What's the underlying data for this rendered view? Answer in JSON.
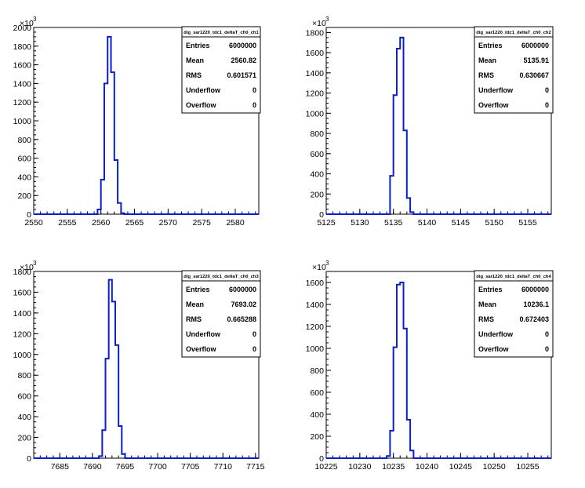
{
  "chart_data": [
    {
      "type": "bar",
      "title": "",
      "xlabel": "",
      "ylabel": "",
      "y_exponent_label": "×10",
      "y_exponent": "3",
      "xlim": [
        2550,
        2583.5
      ],
      "ylim": [
        0,
        2000
      ],
      "x_ticks": [
        2550,
        2555,
        2560,
        2565,
        2570,
        2575,
        2580
      ],
      "y_ticks": [
        0,
        200,
        400,
        600,
        800,
        1000,
        1200,
        1400,
        1600,
        1800,
        2000
      ],
      "bin_width": 0.5,
      "bins": [
        [
          2558.5,
          0
        ],
        [
          2559.0,
          0
        ],
        [
          2559.5,
          50
        ],
        [
          2560.0,
          370
        ],
        [
          2560.5,
          1400
        ],
        [
          2561.0,
          1900
        ],
        [
          2561.5,
          1520
        ],
        [
          2562.0,
          580
        ],
        [
          2562.5,
          120
        ],
        [
          2563.0,
          10
        ],
        [
          2563.5,
          0
        ]
      ],
      "grid": false,
      "stats": {
        "name": "dig_sar1220_tdc1_deltaT_ch0_ch1",
        "rows": [
          {
            "label": "Entries",
            "value": "6000000"
          },
          {
            "label": "Mean",
            "value": "2560.82"
          },
          {
            "label": "RMS",
            "value": "0.601571"
          },
          {
            "label": "Underflow",
            "value": "0"
          },
          {
            "label": "Overflow",
            "value": "0"
          }
        ]
      }
    },
    {
      "type": "bar",
      "title": "",
      "xlabel": "",
      "ylabel": "",
      "y_exponent_label": "×10",
      "y_exponent": "3",
      "xlim": [
        5125,
        5158.5
      ],
      "ylim": [
        0,
        1850
      ],
      "x_ticks": [
        5125,
        5130,
        5135,
        5140,
        5145,
        5150,
        5155
      ],
      "y_ticks": [
        0,
        200,
        400,
        600,
        800,
        1000,
        1200,
        1400,
        1600,
        1800
      ],
      "bin_width": 0.5,
      "bins": [
        [
          5133.5,
          0
        ],
        [
          5134.0,
          0
        ],
        [
          5134.5,
          380
        ],
        [
          5135.0,
          1180
        ],
        [
          5135.5,
          1640
        ],
        [
          5136.0,
          1750
        ],
        [
          5136.5,
          830
        ],
        [
          5137.0,
          160
        ],
        [
          5137.5,
          20
        ],
        [
          5138.0,
          0
        ]
      ],
      "grid": false,
      "stats": {
        "name": "dig_sar1220_tdc1_deltaT_ch0_ch2",
        "rows": [
          {
            "label": "Entries",
            "value": "6000000"
          },
          {
            "label": "Mean",
            "value": "5135.91"
          },
          {
            "label": "RMS",
            "value": "0.630667"
          },
          {
            "label": "Underflow",
            "value": "0"
          },
          {
            "label": "Overflow",
            "value": "0"
          }
        ]
      }
    },
    {
      "type": "bar",
      "title": "",
      "xlabel": "",
      "ylabel": "",
      "y_exponent_label": "×10",
      "y_exponent": "3",
      "xlim": [
        7681,
        7715.5
      ],
      "ylim": [
        0,
        1800
      ],
      "x_ticks": [
        7685,
        7690,
        7695,
        7700,
        7705,
        7710,
        7715
      ],
      "y_ticks": [
        0,
        200,
        400,
        600,
        800,
        1000,
        1200,
        1400,
        1600,
        1800
      ],
      "bin_width": 0.5,
      "bins": [
        [
          7690.5,
          0
        ],
        [
          7691.0,
          20
        ],
        [
          7691.5,
          270
        ],
        [
          7692.0,
          960
        ],
        [
          7692.5,
          1720
        ],
        [
          7693.0,
          1510
        ],
        [
          7693.5,
          1090
        ],
        [
          7694.0,
          310
        ],
        [
          7694.5,
          40
        ],
        [
          7695.0,
          0
        ]
      ],
      "grid": false,
      "stats": {
        "name": "dig_sar1220_tdc1_deltaT_ch0_ch3",
        "rows": [
          {
            "label": "Entries",
            "value": "6000000"
          },
          {
            "label": "Mean",
            "value": "7693.02"
          },
          {
            "label": "RMS",
            "value": "0.665288"
          },
          {
            "label": "Underflow",
            "value": "0"
          },
          {
            "label": "Overflow",
            "value": "0"
          }
        ]
      }
    },
    {
      "type": "bar",
      "title": "",
      "xlabel": "",
      "ylabel": "",
      "y_exponent_label": "×10",
      "y_exponent": "3",
      "xlim": [
        10225,
        10258.5
      ],
      "ylim": [
        0,
        1700
      ],
      "x_ticks": [
        10225,
        10230,
        10235,
        10240,
        10245,
        10250,
        10255
      ],
      "y_ticks": [
        0,
        200,
        400,
        600,
        800,
        1000,
        1200,
        1400,
        1600
      ],
      "bin_width": 0.5,
      "bins": [
        [
          10233.5,
          0
        ],
        [
          10234.0,
          20
        ],
        [
          10234.5,
          250
        ],
        [
          10235.0,
          1010
        ],
        [
          10235.5,
          1580
        ],
        [
          10236.0,
          1600
        ],
        [
          10236.5,
          1180
        ],
        [
          10237.0,
          350
        ],
        [
          10237.5,
          70
        ],
        [
          10238.0,
          0
        ]
      ],
      "grid": false,
      "stats": {
        "name": "dig_sar1220_tdc1_deltaT_ch0_ch4",
        "rows": [
          {
            "label": "Entries",
            "value": "6000000"
          },
          {
            "label": "Mean",
            "value": "10236.1"
          },
          {
            "label": "RMS",
            "value": "0.672403"
          },
          {
            "label": "Underflow",
            "value": "0"
          },
          {
            "label": "Overflow",
            "value": "0"
          }
        ]
      }
    }
  ],
  "colors": {
    "histogram": "#0a1ecc",
    "axis": "#000000",
    "background": "#ffffff"
  }
}
